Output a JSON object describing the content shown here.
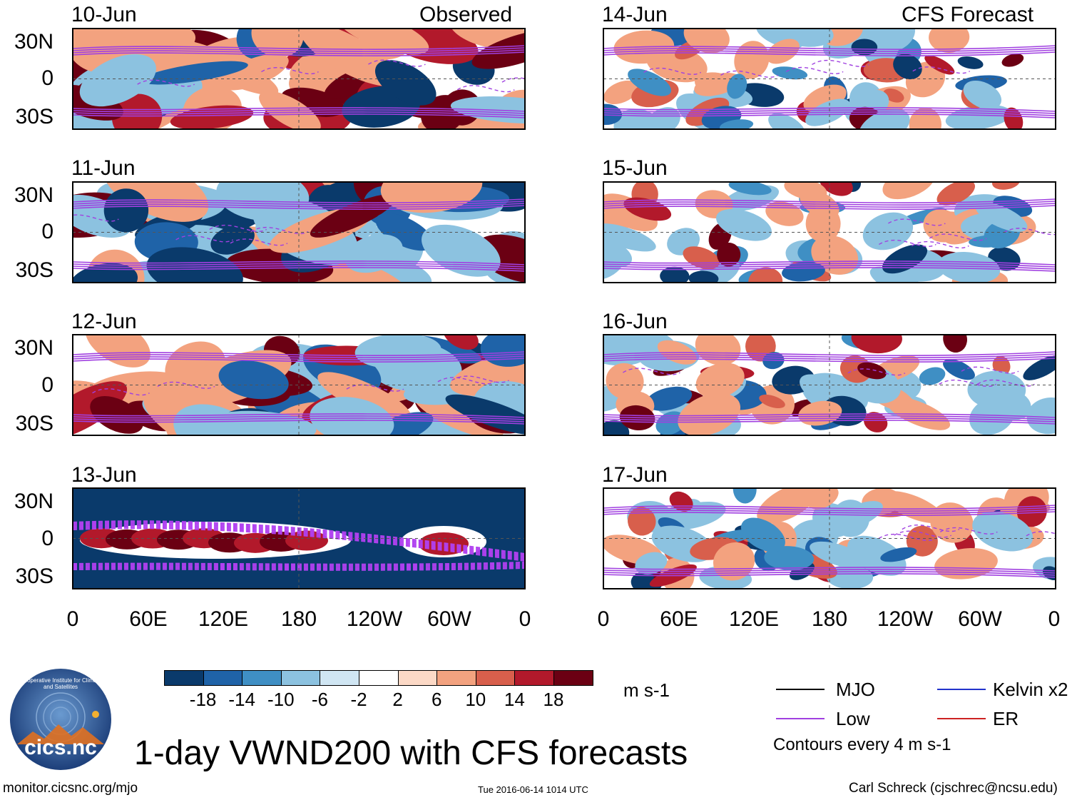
{
  "observed_label": "Observed",
  "forecast_label": "CFS Forecast",
  "panels_left": [
    {
      "date": "10-Jun",
      "scheme": "mixed"
    },
    {
      "date": "11-Jun",
      "scheme": "strong"
    },
    {
      "date": "12-Jun",
      "scheme": "mixed"
    },
    {
      "date": "13-Jun",
      "scheme": "band"
    }
  ],
  "panels_right": [
    {
      "date": "14-Jun",
      "scheme": "light"
    },
    {
      "date": "15-Jun",
      "scheme": "light"
    },
    {
      "date": "16-Jun",
      "scheme": "light"
    },
    {
      "date": "17-Jun",
      "scheme": "light"
    }
  ],
  "lat_labels": [
    "30N",
    "0",
    "30S"
  ],
  "lon_labels": [
    "0",
    "60E",
    "120E",
    "180",
    "120W",
    "60W",
    "0"
  ],
  "colorbar": {
    "colors": [
      "#0a3a6b",
      "#1f63a8",
      "#3f8fc4",
      "#8cc2e0",
      "#d0e6f3",
      "#ffffff",
      "#fcd9c6",
      "#f3a27f",
      "#d85f4c",
      "#b2192b",
      "#6b0013"
    ],
    "labels": [
      "-18",
      "-14",
      "-10",
      "-6",
      "-2",
      "2",
      "6",
      "10",
      "14",
      "18"
    ],
    "unit": "m s-1"
  },
  "legend": {
    "items": [
      {
        "label": "MJO",
        "color": "#000000"
      },
      {
        "label": "Kelvin x2",
        "color": "#2233cc"
      },
      {
        "label": "Low",
        "color": "#a040e0"
      },
      {
        "label": "ER",
        "color": "#cc2222"
      }
    ],
    "note": "Contours every 4 m s-1"
  },
  "logo_text": "cics.nc",
  "logo_ring_text": "Cooperative Institute for Climate and Satellites",
  "main_title": "1-day VWND200 with CFS forecasts",
  "footer": {
    "left": "monitor.cicsnc.org/mjo",
    "center": "Tue 2016-06-14 1014 UTC",
    "right": "Carl Schreck (cjschrec@ncsu.edu)"
  }
}
